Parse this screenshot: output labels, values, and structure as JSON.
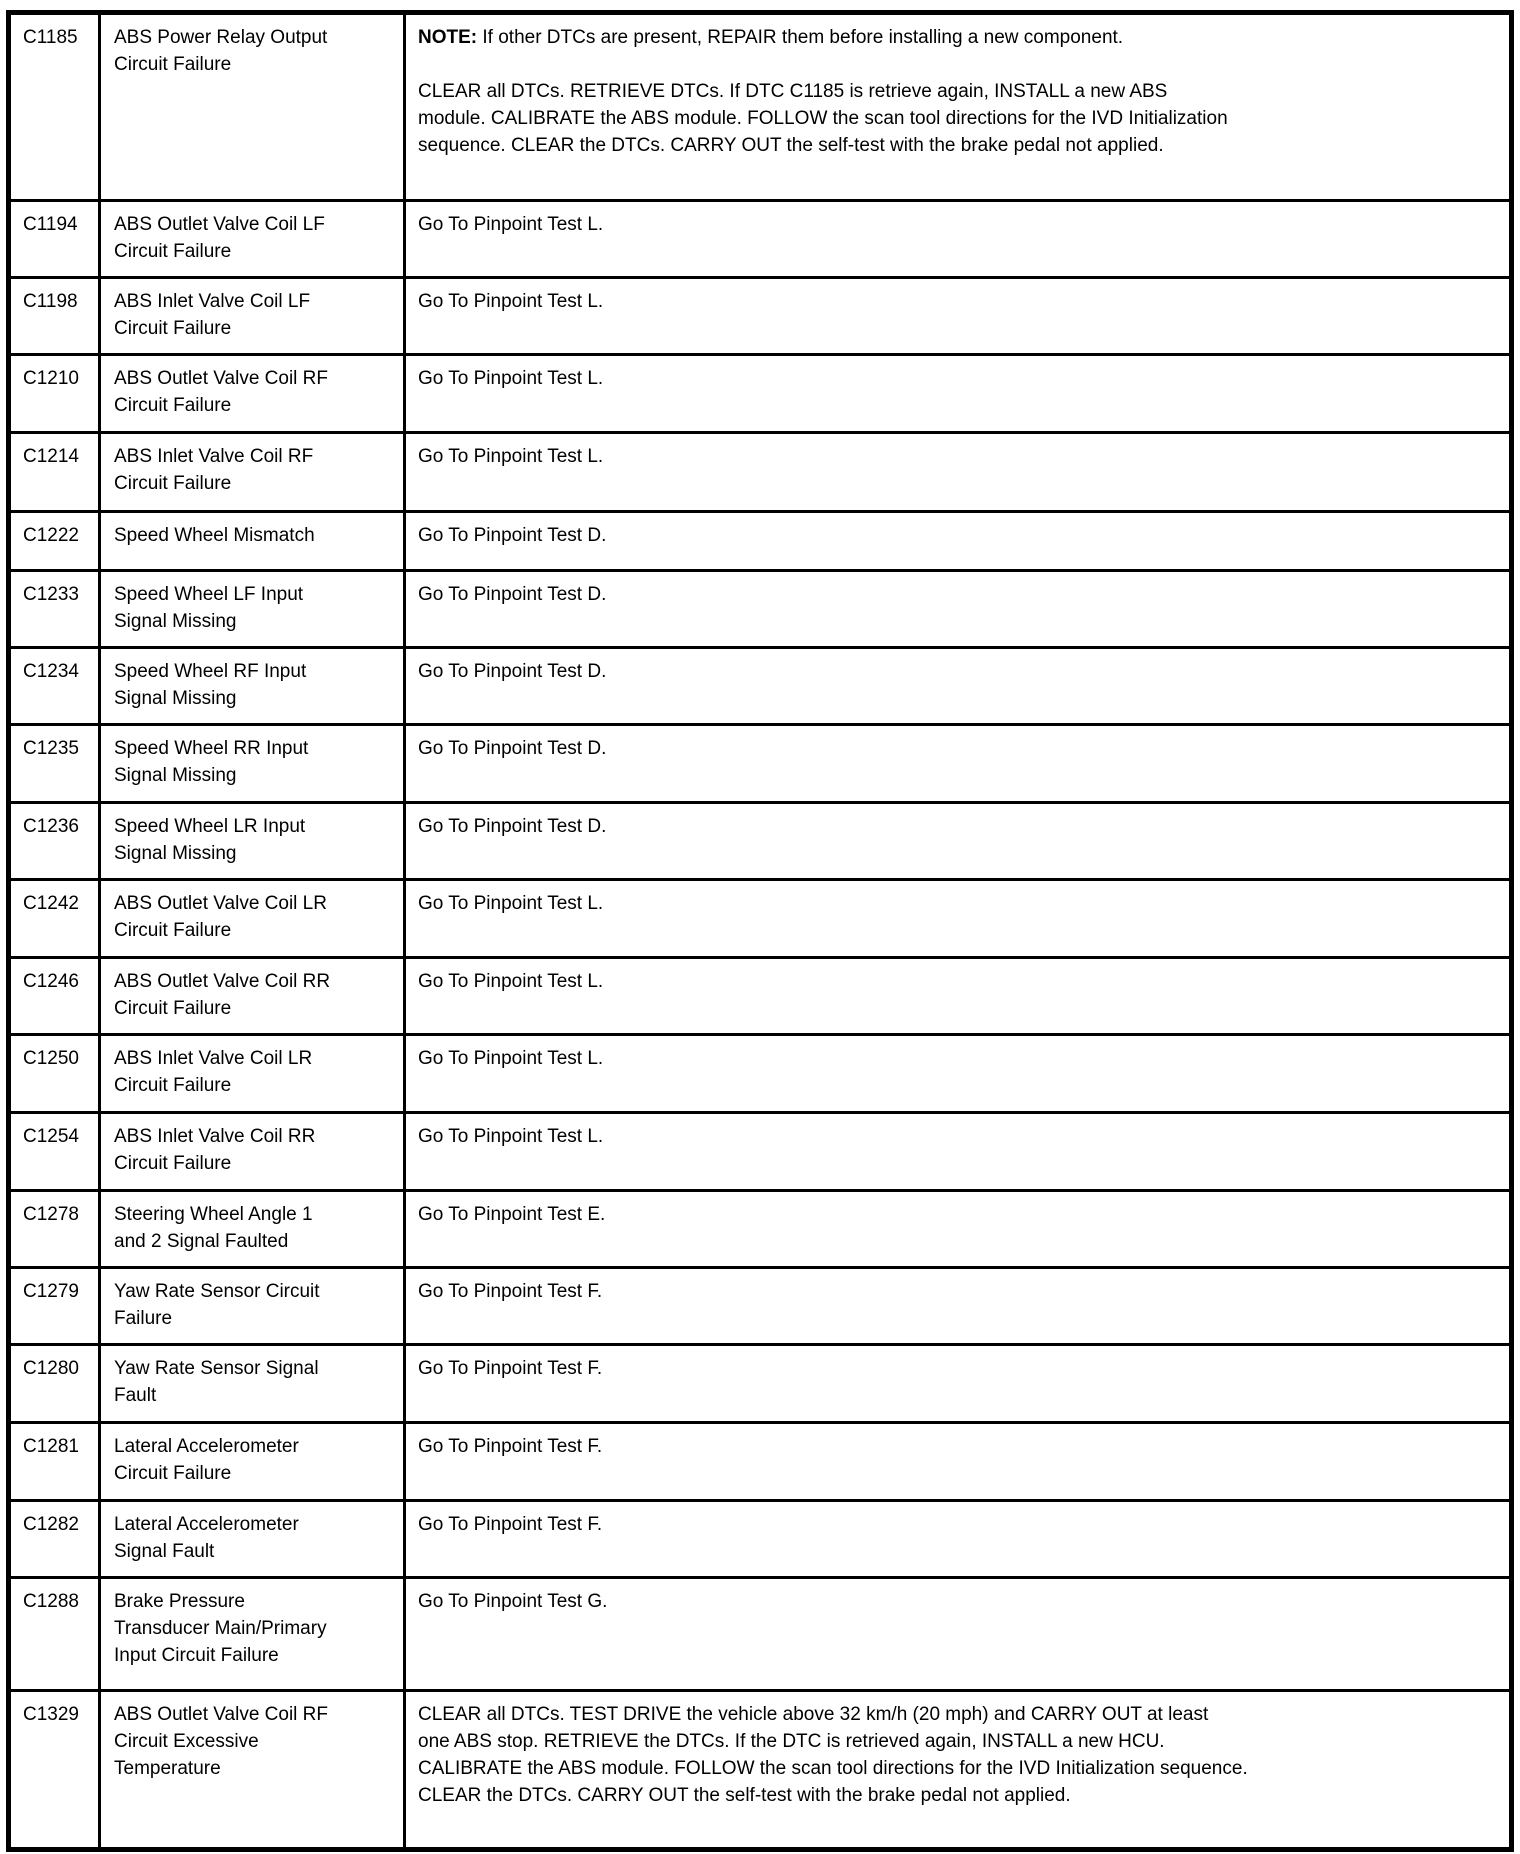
{
  "colors": {
    "background": "#ffffff",
    "text": "#000000",
    "border": "#000000"
  },
  "table": {
    "rows": [
      {
        "code": "C1185",
        "description": "ABS Power Relay Output\nCircuit Failure",
        "action": [
          {
            "bold_prefix": "NOTE:",
            "text": " If other DTCs are present, REPAIR them before installing a new component."
          },
          {
            "text": "CLEAR all DTCs. RETRIEVE DTCs. If DTC C1185 is retrieve again, INSTALL a new ABS\nmodule. CALIBRATE the ABS module. FOLLOW the scan tool directions for the IVD Initialization\nsequence. CLEAR the DTCs. CARRY OUT the self-test with the brake pedal not applied."
          }
        ]
      },
      {
        "code": "C1194",
        "description": "ABS Outlet Valve Coil LF\nCircuit Failure",
        "action": [
          {
            "text": "Go To Pinpoint Test L."
          }
        ]
      },
      {
        "code": "C1198",
        "description": "ABS Inlet Valve Coil LF\nCircuit Failure",
        "action": [
          {
            "text": "Go To Pinpoint Test L."
          }
        ]
      },
      {
        "code": "C1210",
        "description": "ABS Outlet Valve Coil RF\nCircuit Failure",
        "action": [
          {
            "text": "Go To Pinpoint Test L."
          }
        ]
      },
      {
        "code": "C1214",
        "description": "ABS Inlet Valve Coil RF\nCircuit Failure",
        "action": [
          {
            "text": "Go To Pinpoint Test L."
          }
        ]
      },
      {
        "code": "C1222",
        "description": "Speed Wheel Mismatch",
        "action": [
          {
            "text": "Go To Pinpoint Test D."
          }
        ]
      },
      {
        "code": "C1233",
        "description": "Speed Wheel LF Input\nSignal Missing",
        "action": [
          {
            "text": "Go To Pinpoint Test D."
          }
        ]
      },
      {
        "code": "C1234",
        "description": "Speed Wheel RF Input\nSignal Missing",
        "action": [
          {
            "text": "Go To Pinpoint Test D."
          }
        ]
      },
      {
        "code": "C1235",
        "description": "Speed Wheel RR Input\nSignal Missing",
        "action": [
          {
            "text": "Go To Pinpoint Test D."
          }
        ]
      },
      {
        "code": "C1236",
        "description": "Speed Wheel LR Input\nSignal Missing",
        "action": [
          {
            "text": "Go To Pinpoint Test D."
          }
        ]
      },
      {
        "code": "C1242",
        "description": "ABS Outlet Valve Coil LR\nCircuit Failure",
        "action": [
          {
            "text": "Go To Pinpoint Test L."
          }
        ]
      },
      {
        "code": "C1246",
        "description": "ABS Outlet Valve Coil RR\nCircuit Failure",
        "action": [
          {
            "text": "Go To Pinpoint Test L."
          }
        ]
      },
      {
        "code": "C1250",
        "description": "ABS Inlet Valve Coil LR\nCircuit Failure",
        "action": [
          {
            "text": "Go To Pinpoint Test L."
          }
        ]
      },
      {
        "code": "C1254",
        "description": "ABS Inlet Valve Coil RR\nCircuit Failure",
        "action": [
          {
            "text": "Go To Pinpoint Test L."
          }
        ]
      },
      {
        "code": "C1278",
        "description": "Steering Wheel Angle 1\nand 2 Signal Faulted",
        "action": [
          {
            "text": "Go To Pinpoint Test E."
          }
        ]
      },
      {
        "code": "C1279",
        "description": "Yaw Rate Sensor Circuit\nFailure",
        "action": [
          {
            "text": "Go To Pinpoint Test F."
          }
        ]
      },
      {
        "code": "C1280",
        "description": "Yaw Rate Sensor Signal\nFault",
        "action": [
          {
            "text": "Go To Pinpoint Test F."
          }
        ]
      },
      {
        "code": "C1281",
        "description": "Lateral Accelerometer\nCircuit Failure",
        "action": [
          {
            "text": "Go To Pinpoint Test F."
          }
        ]
      },
      {
        "code": "C1282",
        "description": "Lateral Accelerometer\nSignal Fault",
        "action": [
          {
            "text": "Go To Pinpoint Test F."
          }
        ]
      },
      {
        "code": "C1288",
        "description": "Brake Pressure\nTransducer Main/Primary\nInput Circuit Failure",
        "action": [
          {
            "text": "Go To Pinpoint Test G."
          }
        ]
      },
      {
        "code": "C1329",
        "description": "ABS Outlet Valve Coil RF\nCircuit Excessive\nTemperature",
        "action": [
          {
            "text": "CLEAR all DTCs. TEST DRIVE the vehicle above 32 km/h (20 mph) and CARRY OUT at least\none ABS stop. RETRIEVE the DTCs. If the DTC is retrieved again, INSTALL a new HCU.\nCALIBRATE the ABS module. FOLLOW the scan tool directions for the IVD Initialization sequence.\nCLEAR the DTCs. CARRY OUT the self-test with the brake pedal not applied."
          }
        ]
      }
    ]
  }
}
